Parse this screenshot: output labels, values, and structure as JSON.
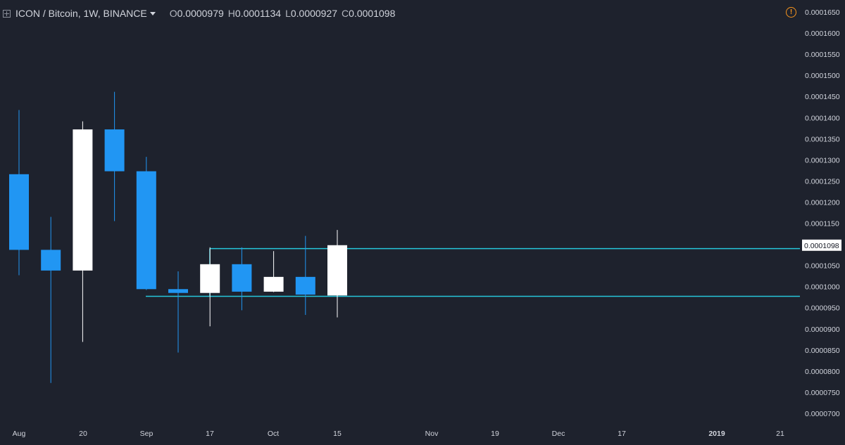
{
  "header": {
    "symbol": "ICON / Bitcoin, 1W, BINANCE",
    "ohlc": [
      {
        "label": "O",
        "value": "0.0000979"
      },
      {
        "label": "H",
        "value": "0.0001134"
      },
      {
        "label": "L",
        "value": "0.0000927"
      },
      {
        "label": "C",
        "value": "0.0001098"
      }
    ]
  },
  "icons": {
    "expand": "plus-box-icon",
    "dropdown": "caret-down-icon",
    "alert": "exclamation-circle-icon"
  },
  "colors": {
    "background": "#1e222d",
    "up": "#ffffff",
    "down": "#2196f3",
    "levels": "#26c6da",
    "price_tag_bg": "#ffffff",
    "axis_text": "#d1d4dc"
  },
  "chart_data": {
    "type": "candlestick",
    "title": "ICON / Bitcoin, 1W, BINANCE",
    "ylim": [
      7e-05,
      0.000165
    ],
    "y_ticks": [
      "0.0001650",
      "0.0001600",
      "0.0001550",
      "0.0001500",
      "0.0001450",
      "0.0001400",
      "0.0001350",
      "0.0001300",
      "0.0001250",
      "0.0001200",
      "0.0001150",
      "0.0001100",
      "0.0001050",
      "0.0001000",
      "0.0000950",
      "0.0000900",
      "0.0000850",
      "0.0000800",
      "0.0000750",
      "0.0000700"
    ],
    "x_ticks": [
      "Aug",
      "20",
      "Sep",
      "17",
      "Oct",
      "15",
      "Nov",
      "19",
      "Dec",
      "17",
      "2019",
      "21"
    ],
    "candles": [
      {
        "o": 0.0001266,
        "h": 0.0001418,
        "l": 0.0001027,
        "c": 0.0001087
      },
      {
        "o": 0.0001087,
        "h": 0.0001165,
        "l": 7.72e-05,
        "c": 0.0001038
      },
      {
        "o": 0.0001038,
        "h": 0.0001391,
        "l": 8.69e-05,
        "c": 0.0001372
      },
      {
        "o": 0.0001372,
        "h": 0.0001461,
        "l": 0.0001155,
        "c": 0.0001273
      },
      {
        "o": 0.0001273,
        "h": 0.0001307,
        "l": 9.92e-05,
        "c": 9.94e-05
      },
      {
        "o": 9.94e-05,
        "h": 0.0001036,
        "l": 8.44e-05,
        "c": 9.85e-05
      },
      {
        "o": 9.85e-05,
        "h": 0.0001093,
        "l": 9.06e-05,
        "c": 0.0001053
      },
      {
        "o": 0.0001053,
        "h": 0.0001093,
        "l": 9.44e-05,
        "c": 9.88e-05
      },
      {
        "o": 9.88e-05,
        "h": 0.0001084,
        "l": 9.87e-05,
        "c": 0.0001023
      },
      {
        "o": 0.0001023,
        "h": 0.000112,
        "l": 9.33e-05,
        "c": 9.81e-05
      },
      {
        "o": 9.79e-05,
        "h": 0.0001134,
        "l": 9.27e-05,
        "c": 0.0001098
      }
    ],
    "levels": [
      0.000109,
      9.77e-05
    ],
    "last_price": "0.0001098"
  }
}
